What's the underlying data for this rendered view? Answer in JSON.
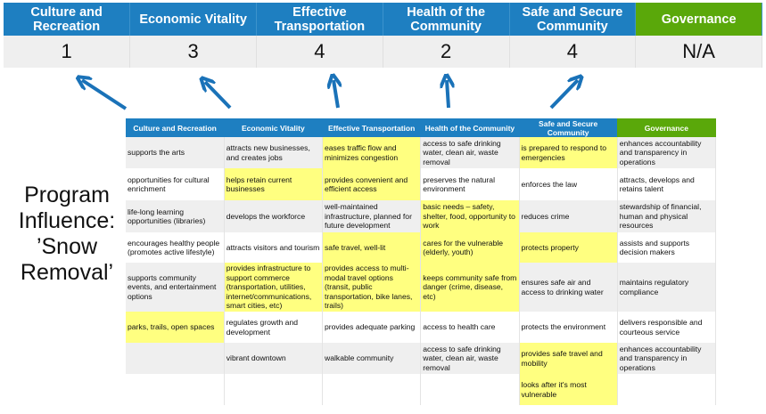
{
  "categories": [
    {
      "label": "Culture and Recreation",
      "score": "1"
    },
    {
      "label": "Economic Vitality",
      "score": "3"
    },
    {
      "label": "Effective Transportation",
      "score": "4"
    },
    {
      "label": "Health of the Community",
      "score": "2"
    },
    {
      "label": "Safe and Secure Community",
      "score": "4"
    },
    {
      "label": "Governance",
      "score": "N/A"
    }
  ],
  "program_label": {
    "line1": "Program",
    "line2": "Influence:",
    "line3": "’Snow",
    "line4": "Removal’"
  },
  "grid": {
    "headers": [
      "Culture and Recreation",
      "Economic Vitality",
      "Effective Transportation",
      "Health of the Community",
      "Safe and Secure Community",
      "Governance"
    ],
    "rows": [
      {
        "cells": [
          "supports the arts",
          "attracts new businesses, and creates jobs",
          "eases traffic flow and minimizes congestion",
          "access to safe drinking water, clean air, waste removal",
          "is prepared to respond to emergencies",
          "enhances accountability and transparency in operations"
        ],
        "highlighted": [
          false,
          false,
          true,
          false,
          true,
          false
        ]
      },
      {
        "cells": [
          "opportunities for cultural enrichment",
          "helps retain current businesses",
          "provides convenient and efficient access",
          "preserves the natural environment",
          "enforces the law",
          "attracts, develops and retains talent"
        ],
        "highlighted": [
          false,
          true,
          true,
          false,
          false,
          false
        ]
      },
      {
        "cells": [
          "life-long learning opportunities (libraries)",
          "develops the workforce",
          "well-maintained infrastructure, planned for future development",
          "basic needs – safety, shelter, food, opportunity to work",
          "reduces crime",
          "stewardship of financial, human and physical resources"
        ],
        "highlighted": [
          false,
          false,
          false,
          true,
          false,
          false
        ]
      },
      {
        "cells": [
          "encourages healthy people (promotes active lifestyle)",
          "attracts visitors and tourism",
          "safe travel, well-lit",
          "cares for the vulnerable (elderly, youth)",
          "protects property",
          "assists and supports decision makers"
        ],
        "highlighted": [
          false,
          false,
          true,
          true,
          true,
          false
        ]
      },
      {
        "cells": [
          "supports community events, and entertainment options",
          "provides infrastructure to support commerce (transportation, utilities, internet/communications, smart cities, etc)",
          "provides access to multi-modal travel options (transit, public transportation, bike lanes, trails)",
          "keeps community safe from danger (crime, disease, etc)",
          "ensures safe air and access to drinking water",
          "maintains regulatory compliance"
        ],
        "highlighted": [
          false,
          true,
          true,
          true,
          false,
          false
        ]
      },
      {
        "cells": [
          "parks, trails, open spaces",
          "regulates growth and development",
          "provides adequate parking",
          "access to health care",
          "protects the environment",
          "delivers responsible and courteous service"
        ],
        "highlighted": [
          true,
          false,
          false,
          false,
          false,
          false
        ]
      },
      {
        "cells": [
          "",
          "vibrant downtown",
          "walkable community",
          "access to safe drinking water, clean air, waste removal",
          "provides safe travel and mobility",
          "enhances accountability and transparency in operations"
        ],
        "highlighted": [
          false,
          false,
          false,
          false,
          true,
          false
        ]
      },
      {
        "cells": [
          "",
          "",
          "",
          "",
          "looks after it's most vulnerable",
          ""
        ],
        "highlighted": [
          false,
          false,
          false,
          false,
          true,
          false
        ]
      }
    ]
  },
  "colors": {
    "header_blue": "#1e7fc1",
    "governance_green": "#5aa80a",
    "highlight": "#ffff80",
    "arrow": "#1a72b8"
  }
}
